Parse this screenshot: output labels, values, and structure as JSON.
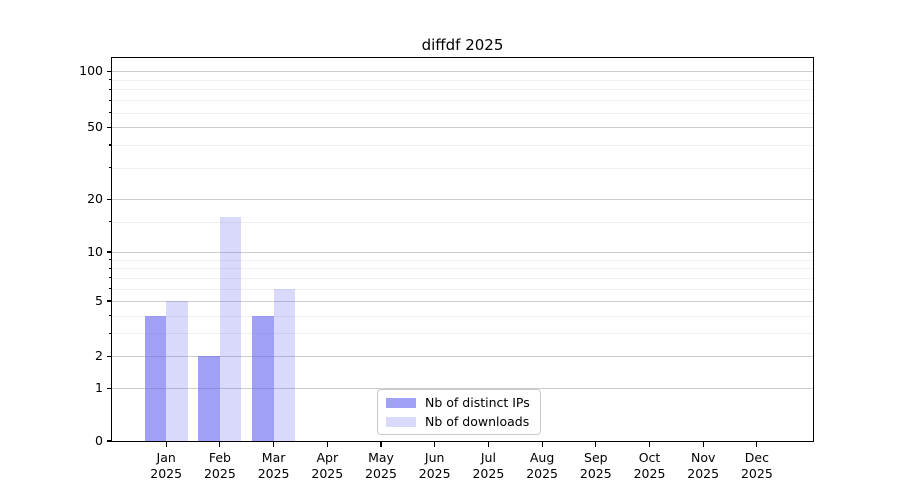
{
  "chart_data": {
    "type": "bar",
    "title": "diffdf 2025",
    "categories": [
      "Jan",
      "Feb",
      "Mar",
      "Apr",
      "May",
      "Jun",
      "Jul",
      "Aug",
      "Sep",
      "Oct",
      "Nov",
      "Dec"
    ],
    "year_label": "2025",
    "series": [
      {
        "name": "Nb of distinct IPs",
        "color": "rgba(102,102,238,0.62)",
        "values": [
          4,
          2,
          4,
          0,
          0,
          0,
          0,
          0,
          0,
          0,
          0,
          0
        ]
      },
      {
        "name": "Nb of downloads",
        "color": "rgba(102,102,238,0.25)",
        "values": [
          5,
          16,
          6,
          0,
          0,
          0,
          0,
          0,
          0,
          0,
          0,
          0
        ]
      }
    ],
    "yaxis": {
      "scale": "log1p",
      "log_offset": 1.1,
      "ylim": [
        0,
        118
      ],
      "major_ticks": [
        0,
        1,
        2,
        5,
        10,
        20,
        50,
        100
      ],
      "minor_ticks": [
        3,
        4,
        6,
        7,
        8,
        9,
        15,
        30,
        40,
        60,
        70,
        80,
        90
      ]
    },
    "xlabel": "",
    "ylabel": "",
    "legend": {
      "location": "lower center"
    },
    "grid": {
      "major_color": "#cdcdcd",
      "minor_color": "#efefef"
    }
  },
  "colors": {
    "background": "#ffffff",
    "axis": "#000000",
    "text": "#000000"
  }
}
